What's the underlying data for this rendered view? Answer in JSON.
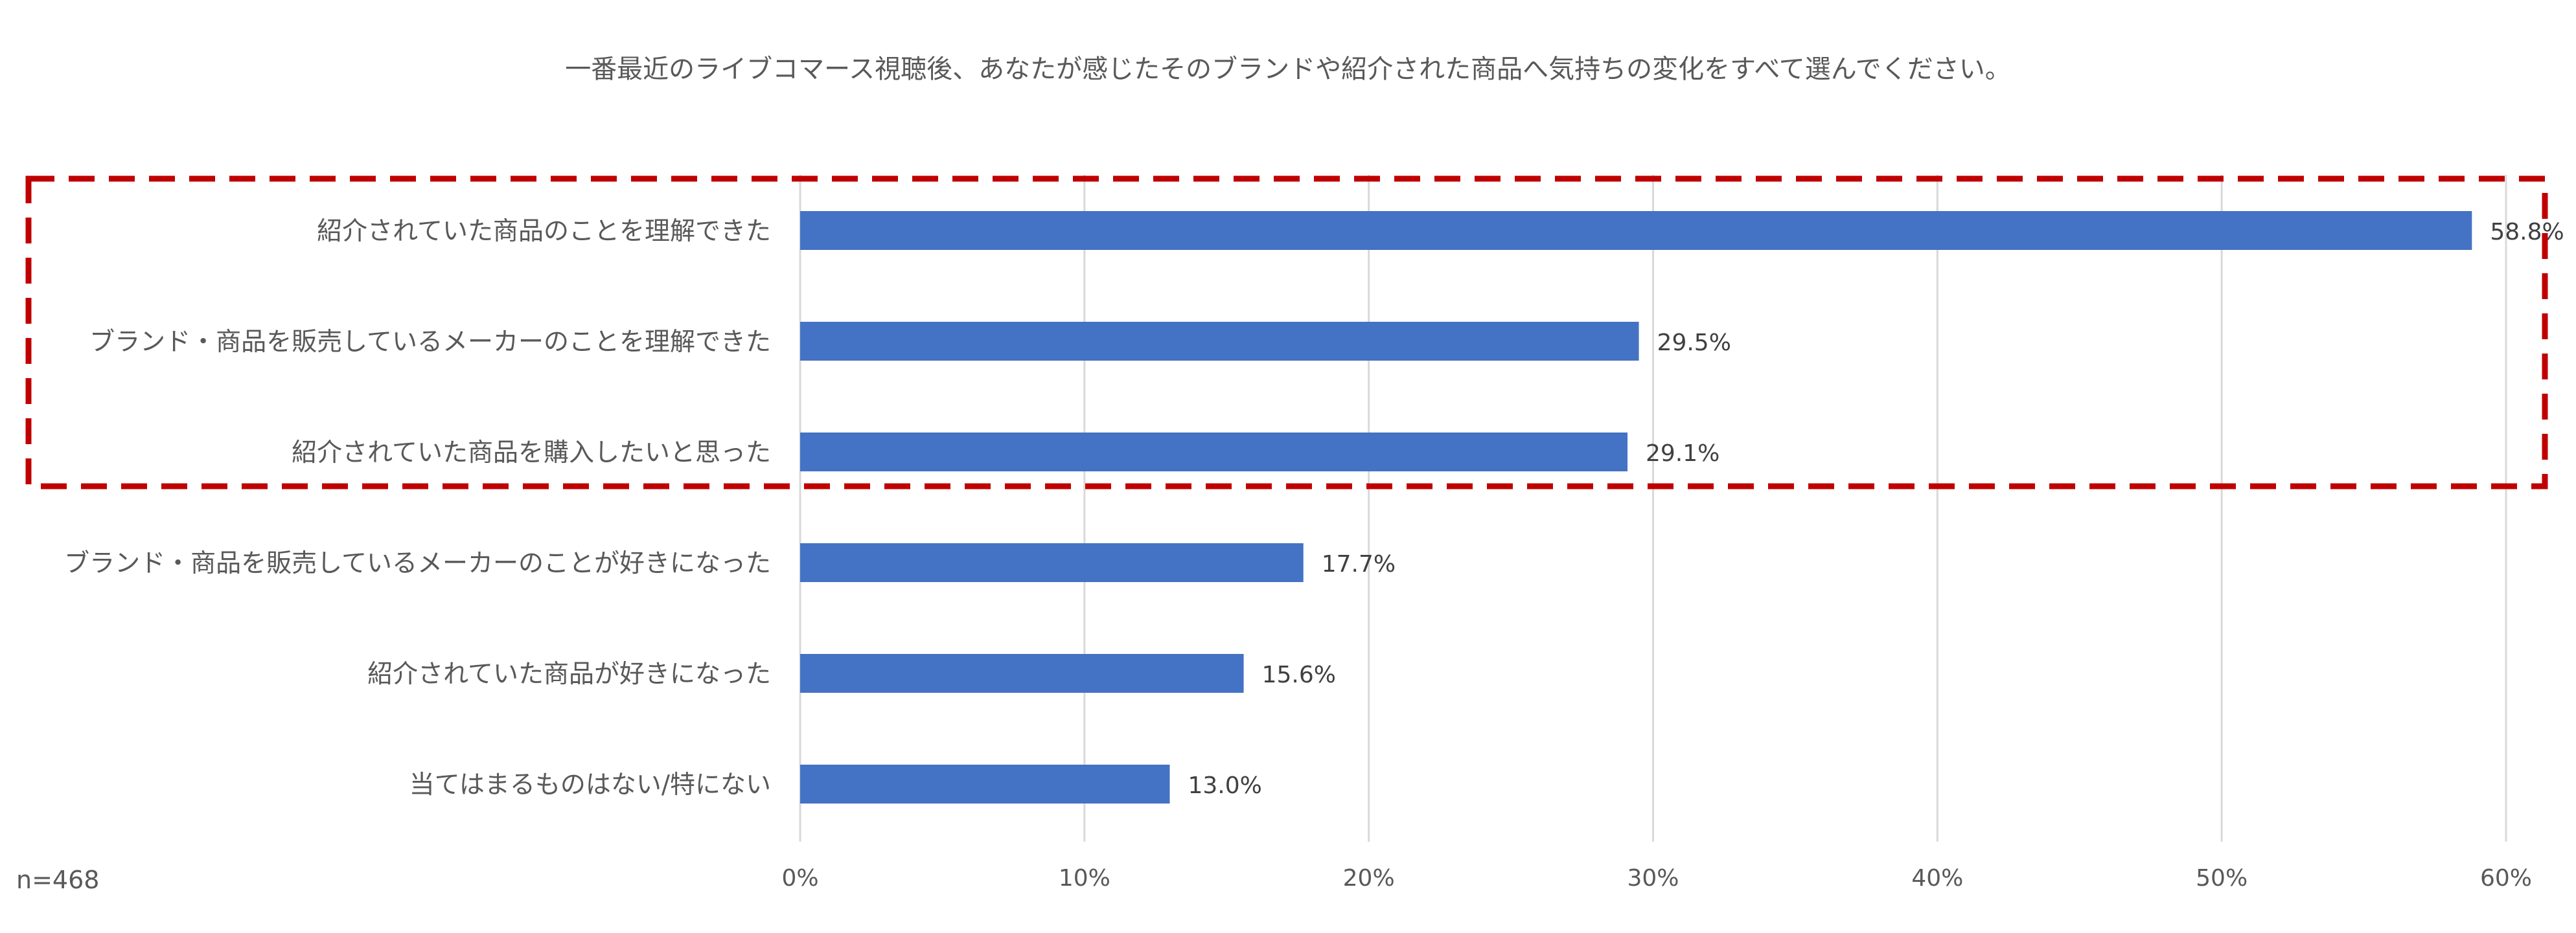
{
  "chart_data": {
    "type": "bar",
    "orientation": "horizontal",
    "title": "一番最近のライブコマース視聴後、あなたが感じたそのブランドや紹介された商品へ気持ちの変化をすべて選んでください。",
    "categories": [
      "紹介されていた商品のことを理解できた",
      "ブランド・商品を販売しているメーカーのことを理解できた",
      "紹介されていた商品を購入したいと思った",
      "ブランド・商品を販売しているメーカーのことが好きになった",
      "紹介されていた商品が好きになった",
      "当てはまるものはない/特にない"
    ],
    "values": [
      58.8,
      29.5,
      29.1,
      17.7,
      15.6,
      13.0
    ],
    "data_labels": [
      "58.8%",
      "29.5%",
      "29.1%",
      "17.7%",
      "15.6%",
      "13.0%"
    ],
    "xlim": [
      0,
      60
    ],
    "xticks": [
      0,
      10,
      20,
      30,
      40,
      50,
      60
    ],
    "xtick_labels": [
      "0%",
      "10%",
      "20%",
      "30%",
      "40%",
      "50%",
      "60%"
    ],
    "grid": "vertical",
    "legend": "none",
    "sample_note": "n=468",
    "highlight_rows": [
      0,
      1,
      2
    ],
    "colors": {
      "bar": "#4472C4",
      "highlight": "#C00000",
      "grid": "#D9D9D9",
      "text": "#595959"
    }
  }
}
